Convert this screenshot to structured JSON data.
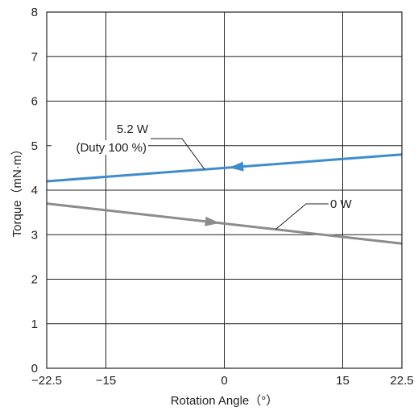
{
  "chart_data": {
    "type": "line",
    "xlabel": "Rotation Angle（°）",
    "ylabel": "Torque（mN·m）",
    "xlim": [
      -22.5,
      22.5
    ],
    "ylim": [
      0,
      8
    ],
    "x_ticks": [
      -22.5,
      -15,
      0,
      15,
      22.5
    ],
    "x_tick_labels": [
      "−22.5",
      "−15",
      "0",
      "15",
      "22.5"
    ],
    "y_ticks": [
      0,
      1,
      2,
      3,
      4,
      5,
      6,
      7,
      8
    ],
    "y_tick_labels": [
      "0",
      "1",
      "2",
      "3",
      "4",
      "5",
      "6",
      "7",
      "8"
    ],
    "grid": true,
    "series": [
      {
        "name": "5.2 W",
        "color": "#3d8dce",
        "x": [
          -22.5,
          22.5
        ],
        "y": [
          4.2,
          4.8
        ],
        "arrow_at_x": 1.5,
        "arrow_direction": "left"
      },
      {
        "name": "0 W",
        "color": "#8c8c8c",
        "x": [
          -22.5,
          22.5
        ],
        "y": [
          3.7,
          2.8
        ],
        "arrow_at_x": -1.5,
        "arrow_direction": "right"
      }
    ],
    "annotations": [
      {
        "series_index": 0,
        "lines": [
          "5.2 W",
          "(Duty 100 %)"
        ]
      },
      {
        "series_index": 1,
        "lines": [
          "0 W"
        ]
      }
    ]
  }
}
